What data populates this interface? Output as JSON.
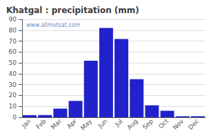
{
  "chart_data": {
    "type": "bar",
    "title": "Khatgal : precipitation (mm)",
    "categories": [
      "Jan",
      "Feb",
      "Mar",
      "Apr",
      "May",
      "Jun",
      "Jul",
      "Aug",
      "Sep",
      "Oct",
      "Nov",
      "Dec"
    ],
    "values": [
      2,
      2,
      8,
      15,
      52,
      82,
      72,
      35,
      11,
      6,
      1,
      1
    ],
    "color": "#2222cc",
    "ylim": [
      0,
      90
    ],
    "yticks": [
      0,
      10,
      20,
      30,
      40,
      50,
      60,
      70,
      80,
      90
    ],
    "grid": true,
    "annotation": "www.allmetsat.com"
  }
}
